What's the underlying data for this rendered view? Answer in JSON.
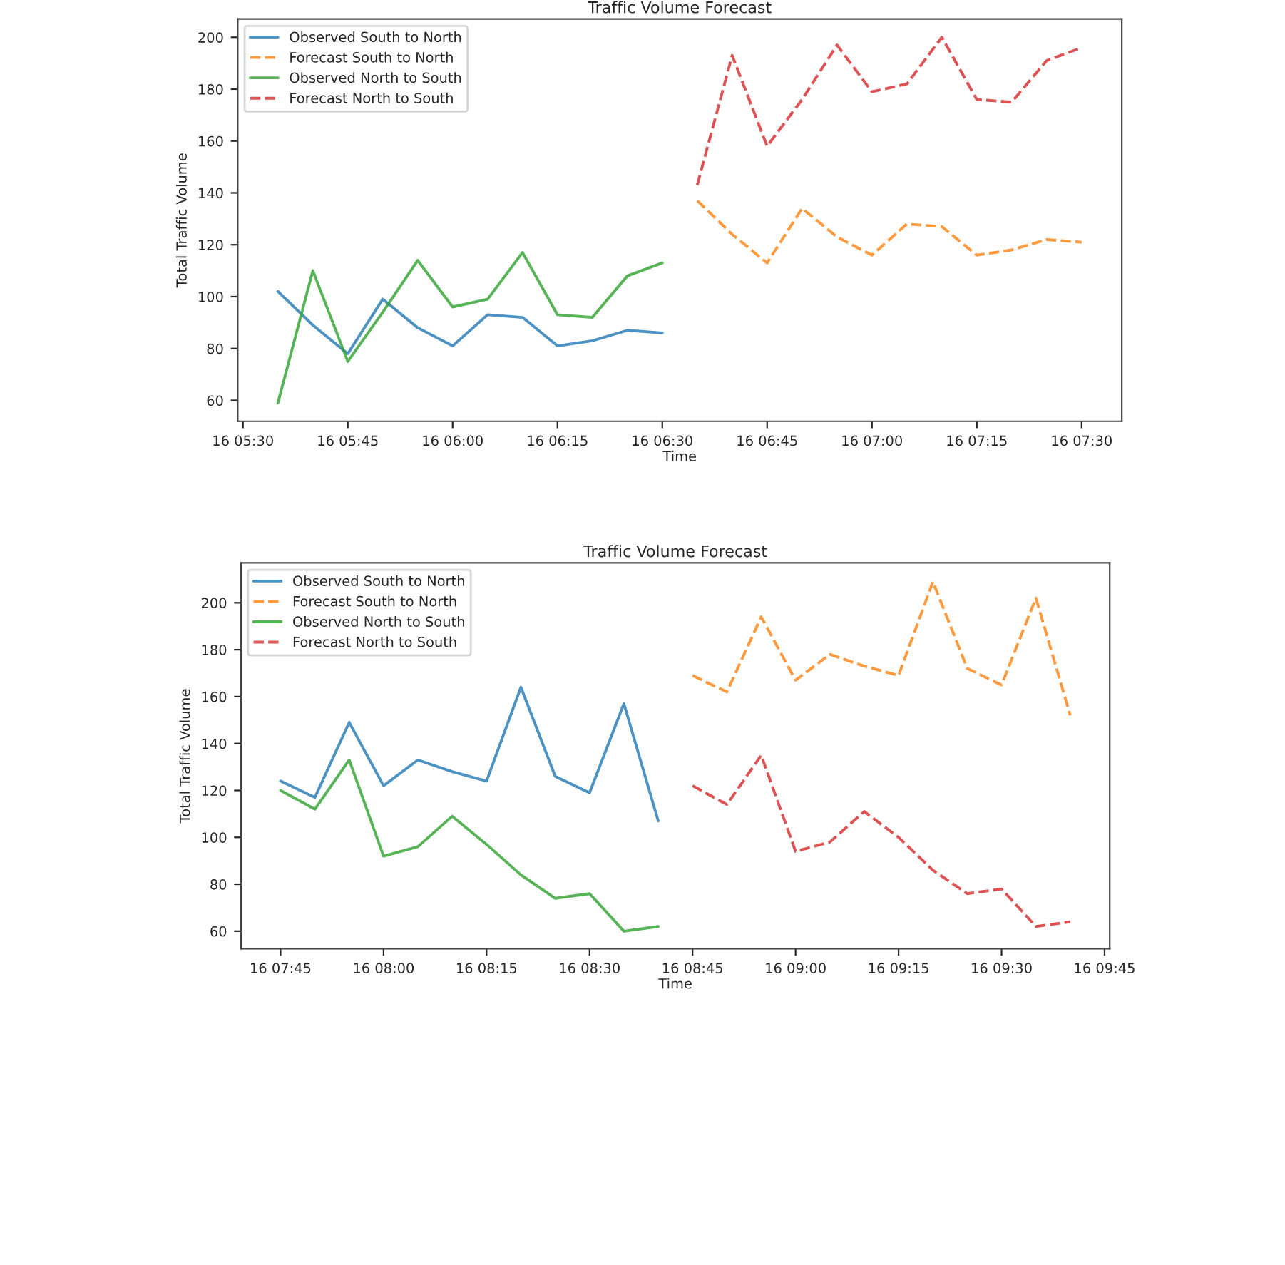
{
  "chart_data": [
    {
      "type": "line",
      "title": "Traffic Volume Forecast",
      "xlabel": "Time",
      "ylabel": "Total Traffic Volume",
      "legend": "top left",
      "grid": false,
      "categories": [
        "16 05:30",
        null,
        null,
        "16 05:45",
        null,
        null,
        "16 06:00",
        null,
        null,
        "16 06:15",
        null,
        null,
        "16 06:30",
        null,
        null,
        "16 06:45",
        null,
        null,
        "16 07:00",
        null,
        null,
        "16 07:15",
        null,
        null,
        "16 07:30"
      ],
      "ylim": [
        51.95,
        207.05
      ],
      "yticks": [
        60,
        80,
        100,
        120,
        140,
        160,
        180,
        200
      ],
      "series": [
        {
          "name": "Observed South to North",
          "color": "#1f77b4",
          "line_style": "solid",
          "values": [
            null,
            102,
            89,
            78,
            99,
            88,
            81,
            93,
            92,
            81,
            83,
            87,
            86,
            null,
            null,
            null,
            null,
            null,
            null,
            null,
            null,
            null,
            null,
            null,
            null
          ]
        },
        {
          "name": "Forecast South to North",
          "color": "#ff7f0e",
          "line_style": "dashed",
          "values": [
            null,
            null,
            null,
            null,
            null,
            null,
            null,
            null,
            null,
            null,
            null,
            null,
            null,
            137,
            124,
            113,
            134,
            123,
            116,
            128,
            127,
            116,
            118,
            122,
            121
          ]
        },
        {
          "name": "Observed North to South",
          "color": "#2ca02c",
          "line_style": "solid",
          "values": [
            null,
            59,
            110,
            75,
            94,
            114,
            96,
            99,
            117,
            93,
            92,
            108,
            113,
            null,
            null,
            null,
            null,
            null,
            null,
            null,
            null,
            null,
            null,
            null,
            null
          ]
        },
        {
          "name": "Forecast North to South",
          "color": "#d62728",
          "line_style": "dashed",
          "values": [
            null,
            null,
            null,
            null,
            null,
            null,
            null,
            null,
            null,
            null,
            null,
            null,
            null,
            143,
            193,
            158,
            176,
            197,
            179,
            182,
            200,
            176,
            175,
            191,
            196
          ]
        }
      ]
    },
    {
      "type": "line",
      "title": "Traffic Volume Forecast",
      "xlabel": "Time",
      "ylabel": "Total Traffic Volume",
      "legend": "top left",
      "grid": false,
      "categories": [
        "16 07:45",
        null,
        null,
        "16 08:00",
        null,
        null,
        "16 08:15",
        null,
        null,
        "16 08:30",
        null,
        null,
        "16 08:45",
        null,
        null,
        "16 09:00",
        null,
        null,
        "16 09:15",
        null,
        null,
        "16 09:30",
        null,
        null,
        "16 09:45"
      ],
      "ylim": [
        52.5,
        217
      ],
      "yticks": [
        60,
        80,
        100,
        120,
        140,
        160,
        180,
        200
      ],
      "series": [
        {
          "name": "Observed South to North",
          "color": "#1f77b4",
          "line_style": "solid",
          "values": [
            124,
            117,
            149,
            122,
            133,
            128,
            124,
            164,
            126,
            119,
            157,
            107,
            null,
            null,
            null,
            null,
            null,
            null,
            null,
            null,
            null,
            null,
            null,
            null,
            null
          ]
        },
        {
          "name": "Forecast South to North",
          "color": "#ff7f0e",
          "line_style": "dashed",
          "values": [
            null,
            null,
            null,
            null,
            null,
            null,
            null,
            null,
            null,
            null,
            null,
            null,
            169,
            162,
            194,
            167,
            178,
            173,
            169,
            209,
            172,
            165,
            202,
            152,
            null
          ]
        },
        {
          "name": "Observed North to South",
          "color": "#2ca02c",
          "line_style": "solid",
          "values": [
            120,
            112,
            133,
            92,
            96,
            109,
            97,
            84,
            74,
            76,
            60,
            62,
            null,
            null,
            null,
            null,
            null,
            null,
            null,
            null,
            null,
            null,
            null,
            null,
            null
          ]
        },
        {
          "name": "Forecast North to South",
          "color": "#d62728",
          "line_style": "dashed",
          "values": [
            null,
            null,
            null,
            null,
            null,
            null,
            null,
            null,
            null,
            null,
            null,
            null,
            122,
            114,
            135,
            94,
            98,
            111,
            100,
            86,
            76,
            78,
            62,
            64,
            null
          ]
        }
      ]
    }
  ]
}
